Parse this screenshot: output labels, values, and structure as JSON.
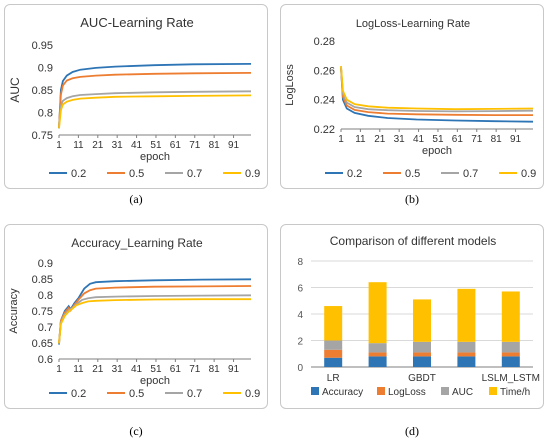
{
  "figure": {
    "captions": [
      "(a)",
      "(b)",
      "(c)",
      "(d)"
    ]
  },
  "colors": {
    "s02": "#2e75b6",
    "s05": "#ed7d31",
    "s07": "#a5a5a5",
    "s09": "#ffc000",
    "axis": "#7f7f7f",
    "grid": "#d9d9d9"
  },
  "chart_data": [
    {
      "type": "line",
      "title": "AUC-Learning Rate",
      "xlabel": "epoch",
      "ylabel": "AUC",
      "x_ticks": [
        "1",
        "11",
        "21",
        "31",
        "41",
        "51",
        "61",
        "71",
        "81",
        "91"
      ],
      "x_range": [
        1,
        100
      ],
      "y_ticks": [
        "0.75",
        "0.8",
        "0.85",
        "0.9",
        "0.95"
      ],
      "ylim": [
        0.75,
        0.95
      ],
      "legend": "bottom",
      "series": [
        {
          "name": "0.2",
          "values": [
            [
              1,
              0.765
            ],
            [
              2,
              0.85
            ],
            [
              3,
              0.87
            ],
            [
              5,
              0.882
            ],
            [
              8,
              0.89
            ],
            [
              12,
              0.895
            ],
            [
              20,
              0.899
            ],
            [
              30,
              0.902
            ],
            [
              50,
              0.905
            ],
            [
              70,
              0.907
            ],
            [
              100,
              0.908
            ]
          ]
        },
        {
          "name": "0.5",
          "values": [
            [
              1,
              0.768
            ],
            [
              2,
              0.84
            ],
            [
              3,
              0.86
            ],
            [
              5,
              0.871
            ],
            [
              8,
              0.876
            ],
            [
              12,
              0.879
            ],
            [
              20,
              0.882
            ],
            [
              30,
              0.884
            ],
            [
              50,
              0.886
            ],
            [
              70,
              0.887
            ],
            [
              100,
              0.888
            ]
          ]
        },
        {
          "name": "0.7",
          "values": [
            [
              1,
              0.77
            ],
            [
              2,
              0.815
            ],
            [
              3,
              0.826
            ],
            [
              5,
              0.832
            ],
            [
              8,
              0.836
            ],
            [
              12,
              0.839
            ],
            [
              20,
              0.841
            ],
            [
              30,
              0.843
            ],
            [
              50,
              0.845
            ],
            [
              70,
              0.846
            ],
            [
              100,
              0.847
            ]
          ]
        },
        {
          "name": "0.9",
          "values": [
            [
              1,
              0.765
            ],
            [
              2,
              0.805
            ],
            [
              3,
              0.818
            ],
            [
              5,
              0.824
            ],
            [
              8,
              0.828
            ],
            [
              12,
              0.831
            ],
            [
              20,
              0.833
            ],
            [
              30,
              0.835
            ],
            [
              50,
              0.836
            ],
            [
              70,
              0.837
            ],
            [
              100,
              0.838
            ]
          ]
        }
      ]
    },
    {
      "type": "line",
      "title": "LogLoss-Learning Rate",
      "xlabel": "epoch",
      "ylabel": "LogLoss",
      "x_ticks": [
        "1",
        "11",
        "21",
        "31",
        "41",
        "51",
        "61",
        "71",
        "81",
        "91"
      ],
      "x_range": [
        1,
        100
      ],
      "y_ticks": [
        "0.22",
        "0.24",
        "0.26",
        "0.28"
      ],
      "ylim": [
        0.22,
        0.28
      ],
      "legend": "bottom",
      "series": [
        {
          "name": "0.2",
          "values": [
            [
              1,
              0.262
            ],
            [
              2,
              0.24
            ],
            [
              4,
              0.234
            ],
            [
              8,
              0.231
            ],
            [
              15,
              0.229
            ],
            [
              25,
              0.2275
            ],
            [
              40,
              0.2265
            ],
            [
              60,
              0.2258
            ],
            [
              80,
              0.2253
            ],
            [
              100,
              0.225
            ]
          ]
        },
        {
          "name": "0.5",
          "values": [
            [
              1,
              0.262
            ],
            [
              2,
              0.242
            ],
            [
              4,
              0.236
            ],
            [
              8,
              0.233
            ],
            [
              15,
              0.2315
            ],
            [
              25,
              0.2305
            ],
            [
              40,
              0.23
            ],
            [
              60,
              0.2297
            ],
            [
              80,
              0.2295
            ],
            [
              100,
              0.2295
            ]
          ]
        },
        {
          "name": "0.7",
          "values": [
            [
              1,
              0.262
            ],
            [
              2,
              0.244
            ],
            [
              4,
              0.238
            ],
            [
              8,
              0.235
            ],
            [
              15,
              0.2335
            ],
            [
              25,
              0.2328
            ],
            [
              40,
              0.2323
            ],
            [
              60,
              0.232
            ],
            [
              80,
              0.2322
            ],
            [
              100,
              0.2325
            ]
          ]
        },
        {
          "name": "0.9",
          "values": [
            [
              1,
              0.263
            ],
            [
              2,
              0.246
            ],
            [
              4,
              0.24
            ],
            [
              8,
              0.237
            ],
            [
              15,
              0.2355
            ],
            [
              25,
              0.2345
            ],
            [
              40,
              0.234
            ],
            [
              60,
              0.2335
            ],
            [
              80,
              0.2337
            ],
            [
              100,
              0.234
            ]
          ]
        }
      ]
    },
    {
      "type": "line",
      "title": "Accuracy_Learning Rate",
      "xlabel": "epoch",
      "ylabel": "Accuracy",
      "x_ticks": [
        "1",
        "11",
        "21",
        "31",
        "41",
        "51",
        "61",
        "71",
        "81",
        "91"
      ],
      "x_range": [
        1,
        100
      ],
      "y_ticks": [
        "0.6",
        "0.65",
        "0.7",
        "0.75",
        "0.8",
        "0.85",
        "0.9"
      ],
      "ylim": [
        0.6,
        0.9
      ],
      "legend": "bottom",
      "series": [
        {
          "name": "0.2",
          "values": [
            [
              1,
              0.645
            ],
            [
              2,
              0.72
            ],
            [
              4,
              0.75
            ],
            [
              6,
              0.765
            ],
            [
              7,
              0.755
            ],
            [
              9,
              0.775
            ],
            [
              11,
              0.79
            ],
            [
              14,
              0.82
            ],
            [
              17,
              0.835
            ],
            [
              20,
              0.84
            ],
            [
              30,
              0.843
            ],
            [
              50,
              0.846
            ],
            [
              75,
              0.848
            ],
            [
              100,
              0.849
            ]
          ]
        },
        {
          "name": "0.5",
          "values": [
            [
              1,
              0.65
            ],
            [
              2,
              0.72
            ],
            [
              4,
              0.745
            ],
            [
              6,
              0.76
            ],
            [
              7,
              0.752
            ],
            [
              9,
              0.77
            ],
            [
              11,
              0.785
            ],
            [
              14,
              0.805
            ],
            [
              17,
              0.815
            ],
            [
              20,
              0.82
            ],
            [
              30,
              0.823
            ],
            [
              50,
              0.826
            ],
            [
              75,
              0.827
            ],
            [
              100,
              0.828
            ]
          ]
        },
        {
          "name": "0.7",
          "values": [
            [
              1,
              0.652
            ],
            [
              2,
              0.715
            ],
            [
              4,
              0.74
            ],
            [
              6,
              0.752
            ],
            [
              8,
              0.76
            ],
            [
              10,
              0.772
            ],
            [
              13,
              0.785
            ],
            [
              16,
              0.79
            ],
            [
              20,
              0.793
            ],
            [
              30,
              0.795
            ],
            [
              50,
              0.797
            ],
            [
              75,
              0.798
            ],
            [
              100,
              0.799
            ]
          ]
        },
        {
          "name": "0.9",
          "values": [
            [
              1,
              0.648
            ],
            [
              2,
              0.71
            ],
            [
              4,
              0.735
            ],
            [
              6,
              0.748
            ],
            [
              8,
              0.758
            ],
            [
              10,
              0.768
            ],
            [
              13,
              0.775
            ],
            [
              16,
              0.78
            ],
            [
              20,
              0.782
            ],
            [
              30,
              0.784
            ],
            [
              50,
              0.786
            ],
            [
              75,
              0.787
            ],
            [
              100,
              0.787
            ]
          ]
        }
      ]
    },
    {
      "type": "bar",
      "stacked": true,
      "title": "Comparison of different models",
      "categories": [
        "LR",
        "",
        "GBDT",
        "",
        "LSLM_LSTM"
      ],
      "y_ticks": [
        "0",
        "2",
        "4",
        "6",
        "8"
      ],
      "ylim": [
        0,
        8
      ],
      "legend": "bottom",
      "series": [
        {
          "name": "Accuracy",
          "values": [
            0.7,
            0.8,
            0.8,
            0.8,
            0.8
          ]
        },
        {
          "name": "LogLoss",
          "values": [
            0.6,
            0.3,
            0.3,
            0.3,
            0.3
          ]
        },
        {
          "name": "AUC",
          "values": [
            0.7,
            0.7,
            0.8,
            0.8,
            0.8
          ]
        },
        {
          "name": "Time/h",
          "values": [
            2.6,
            4.6,
            3.2,
            4.0,
            3.8
          ]
        }
      ]
    }
  ]
}
